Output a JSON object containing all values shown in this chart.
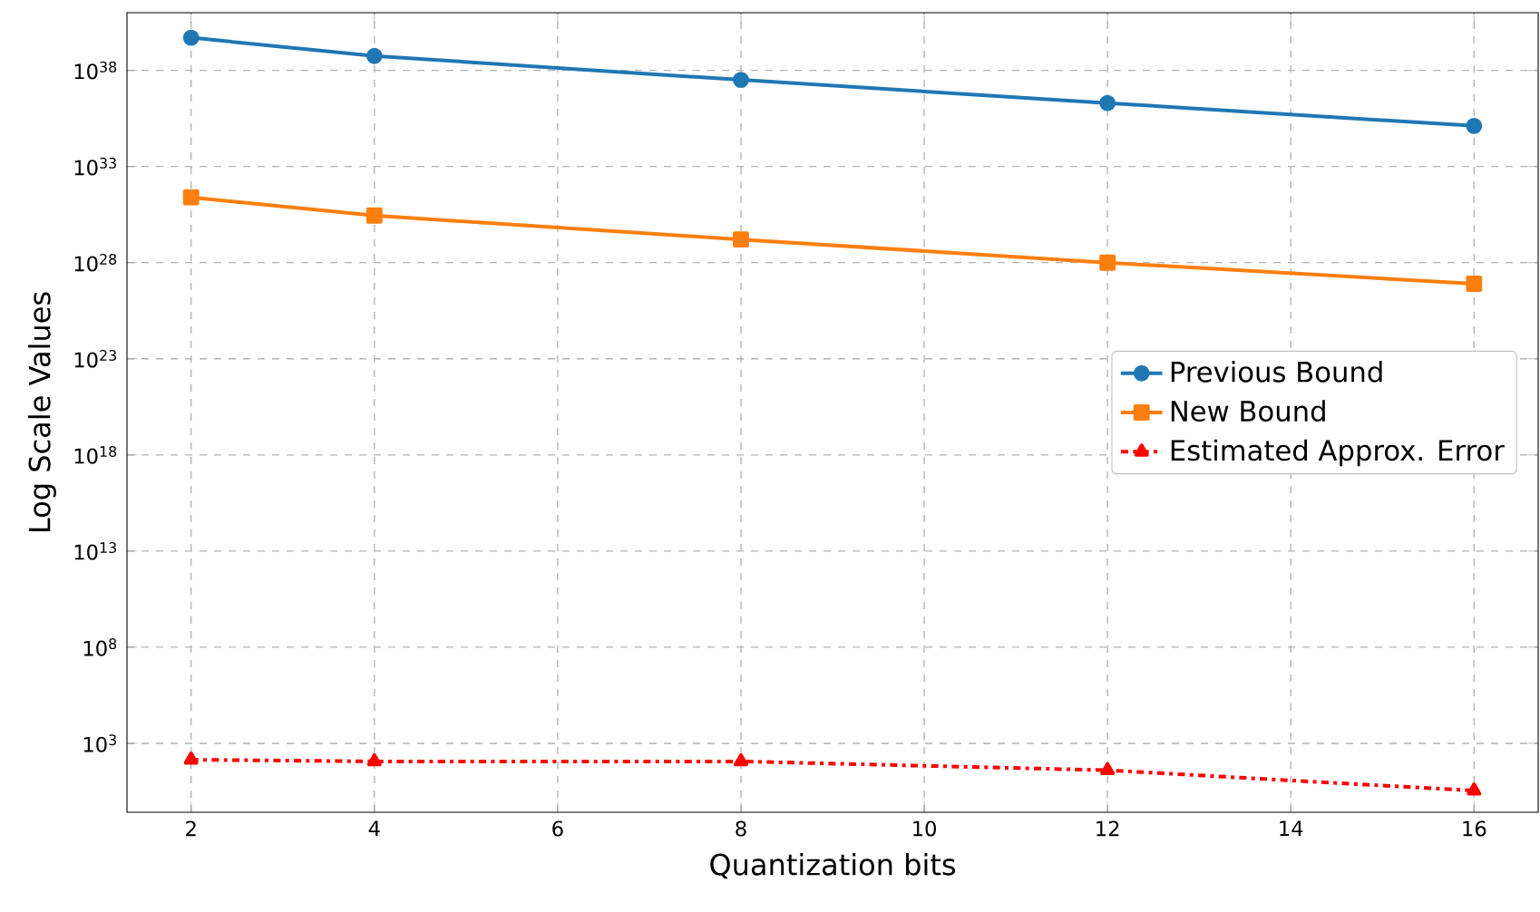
{
  "chart_data": {
    "type": "line",
    "xlabel": "Quantization bits",
    "ylabel": "Log Scale Values",
    "log": "y",
    "grid": true,
    "legend": "right",
    "x": [
      2,
      4,
      8,
      12,
      16
    ],
    "xlim": [
      1.3,
      16.7
    ],
    "xticks": [
      2,
      4,
      6,
      8,
      10,
      12,
      14,
      16
    ],
    "ylim": [
      0.26,
      1e+41
    ],
    "yticks": [
      {
        "value": 1000.0,
        "label": "10$^{3}$"
      },
      {
        "value": 100000000.0,
        "label": "10$^{8}$"
      },
      {
        "value": 10000000000000.0,
        "label": "10$^{13}$"
      },
      {
        "value": 1e+18,
        "label": "10$^{18}$"
      },
      {
        "value": 1e+23,
        "label": "10$^{23}$"
      },
      {
        "value": 1e+28,
        "label": "10$^{28}$"
      },
      {
        "value": 1e+33,
        "label": "10$^{33}$"
      },
      {
        "value": 1e+38,
        "label": "10$^{38}$"
      }
    ],
    "series": [
      {
        "name": "Previous Bound",
        "color": "#1f77b4",
        "marker": "circle",
        "line_style": "solid",
        "values": [
          5e+39,
          5.6e+38,
          3.2e+37,
          2e+36,
          1.3e+35
        ]
      },
      {
        "name": "New Bound",
        "color": "#ff7f0e",
        "marker": "square",
        "line_style": "solid",
        "values": [
          2.5e+31,
          2.8e+30,
          1.6e+29,
          1e+28,
          8e+26
        ]
      },
      {
        "name": "Estimated Approx. Error",
        "color": "#ff0000",
        "marker": "triangle",
        "line_style": "dashdot",
        "values": [
          141,
          115,
          115,
          40,
          3.5
        ]
      }
    ]
  }
}
